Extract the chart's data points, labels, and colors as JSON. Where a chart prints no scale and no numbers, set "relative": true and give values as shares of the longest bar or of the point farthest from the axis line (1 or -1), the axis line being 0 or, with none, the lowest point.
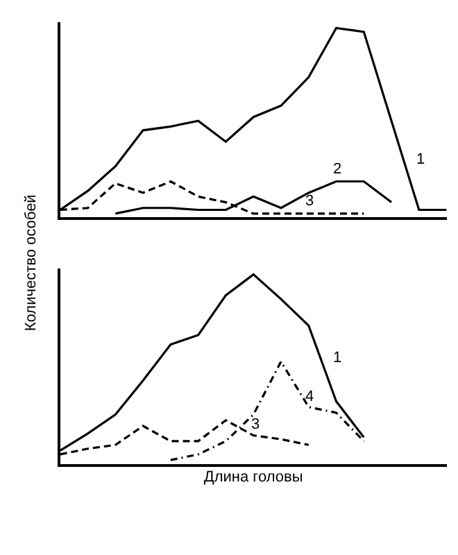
{
  "chart_data": [
    {
      "type": "line",
      "relative": true,
      "tick_labels": false,
      "legend": false,
      "marker": "none",
      "ylabel": "Количество особей",
      "categories": [
        null,
        null,
        null,
        null,
        null,
        null,
        null,
        null,
        null,
        null,
        null,
        null,
        null,
        null,
        null
      ],
      "series": [
        {
          "name": "1",
          "color": "#000000",
          "line_style": "solid",
          "values": [
            0.04,
            0.14,
            0.27,
            0.46,
            0.48,
            0.51,
            0.4,
            0.53,
            0.59,
            0.74,
            1,
            0.98,
            0.51,
            0.04,
            0.04
          ]
        },
        {
          "name": "2",
          "color": "#000000",
          "line_style": "solid",
          "values": [
            null,
            null,
            0.02,
            0.05,
            0.05,
            0.04,
            0.04,
            0.11,
            0.05,
            0.13,
            0.19,
            0.19,
            0.08,
            null,
            null
          ]
        },
        {
          "name": "3",
          "color": "#000000",
          "line_style": "dashed",
          "values": [
            0.04,
            0.05,
            0.18,
            0.13,
            0.19,
            0.11,
            0.08,
            0.02,
            0.02,
            0.02,
            0.02,
            0.02,
            null,
            null,
            null
          ]
        }
      ]
    },
    {
      "type": "line",
      "relative": true,
      "tick_labels": false,
      "legend": false,
      "marker": "none",
      "xlabel": "Длина головы",
      "categories": [
        null,
        null,
        null,
        null,
        null,
        null,
        null,
        null,
        null,
        null,
        null,
        null,
        null,
        null,
        null
      ],
      "series": [
        {
          "name": "1",
          "color": "#000000",
          "line_style": "solid",
          "values": [
            0.07,
            0.16,
            0.26,
            0.44,
            0.63,
            0.68,
            0.89,
            1,
            0.87,
            0.73,
            0.33,
            0.14,
            null,
            null,
            null
          ]
        },
        {
          "name": "3",
          "color": "#000000",
          "line_style": "dashed",
          "values": [
            0.05,
            0.08,
            0.1,
            0.2,
            0.12,
            0.12,
            0.23,
            0.15,
            0.13,
            0.1,
            null,
            null,
            null,
            null,
            null
          ]
        },
        {
          "name": "4",
          "color": "#000000",
          "line_style": "dashdot",
          "values": [
            null,
            null,
            null,
            null,
            0.02,
            0.05,
            0.12,
            0.26,
            0.54,
            0.3,
            0.27,
            0.12,
            null,
            null,
            null
          ]
        }
      ]
    }
  ]
}
